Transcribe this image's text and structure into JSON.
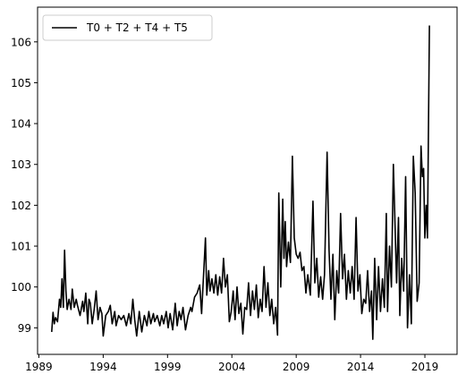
{
  "chart_data": {
    "type": "line",
    "title": "",
    "xlabel": "",
    "ylabel": "",
    "legend": {
      "position": "top-left",
      "entries": [
        "T0 + T2 +  T4 + T5"
      ]
    },
    "grid": false,
    "xlim": [
      1988.9,
      2021.5
    ],
    "ylim": [
      98.35,
      106.85
    ],
    "x_ticks": [
      1989,
      1994,
      1999,
      2004,
      2009,
      2014,
      2019
    ],
    "x_tick_labels": [
      "1989",
      "1994",
      "1999",
      "2004",
      "2009",
      "2014",
      "2019"
    ],
    "y_ticks": [
      99,
      100,
      101,
      102,
      103,
      104,
      105,
      106
    ],
    "y_tick_labels": [
      "99",
      "100",
      "101",
      "102",
      "103",
      "104",
      "105",
      "106"
    ],
    "series": [
      {
        "name": "T0 + T2 +  T4 + T5",
        "color": "#000000",
        "points": [
          [
            1990.0,
            98.9
          ],
          [
            1990.1,
            99.38
          ],
          [
            1990.2,
            99.1
          ],
          [
            1990.3,
            99.25
          ],
          [
            1990.45,
            99.15
          ],
          [
            1990.6,
            99.7
          ],
          [
            1990.7,
            99.5
          ],
          [
            1990.8,
            100.2
          ],
          [
            1990.9,
            99.5
          ],
          [
            1991.0,
            100.9
          ],
          [
            1991.1,
            99.9
          ],
          [
            1991.2,
            99.45
          ],
          [
            1991.35,
            99.7
          ],
          [
            1991.5,
            99.45
          ],
          [
            1991.6,
            99.95
          ],
          [
            1991.75,
            99.5
          ],
          [
            1991.9,
            99.7
          ],
          [
            1992.0,
            99.55
          ],
          [
            1992.2,
            99.3
          ],
          [
            1992.4,
            99.65
          ],
          [
            1992.5,
            99.4
          ],
          [
            1992.65,
            99.85
          ],
          [
            1992.8,
            99.1
          ],
          [
            1992.9,
            99.7
          ],
          [
            1993.0,
            99.6
          ],
          [
            1993.15,
            99.1
          ],
          [
            1993.3,
            99.45
          ],
          [
            1993.45,
            99.9
          ],
          [
            1993.6,
            99.2
          ],
          [
            1993.75,
            99.5
          ],
          [
            1993.9,
            99.35
          ],
          [
            1994.0,
            98.8
          ],
          [
            1994.2,
            99.3
          ],
          [
            1994.4,
            99.4
          ],
          [
            1994.55,
            99.55
          ],
          [
            1994.7,
            99.1
          ],
          [
            1994.9,
            99.4
          ],
          [
            1995.0,
            99.05
          ],
          [
            1995.2,
            99.3
          ],
          [
            1995.4,
            99.2
          ],
          [
            1995.6,
            99.3
          ],
          [
            1995.8,
            99.05
          ],
          [
            1996.0,
            99.35
          ],
          [
            1996.15,
            99.1
          ],
          [
            1996.3,
            99.7
          ],
          [
            1996.45,
            99.2
          ],
          [
            1996.6,
            98.8
          ],
          [
            1996.8,
            99.4
          ],
          [
            1997.0,
            98.9
          ],
          [
            1997.2,
            99.3
          ],
          [
            1997.4,
            99.05
          ],
          [
            1997.55,
            99.4
          ],
          [
            1997.7,
            99.1
          ],
          [
            1997.9,
            99.35
          ],
          [
            1998.0,
            99.15
          ],
          [
            1998.2,
            99.3
          ],
          [
            1998.4,
            99.05
          ],
          [
            1998.55,
            99.3
          ],
          [
            1998.7,
            99.1
          ],
          [
            1998.9,
            99.4
          ],
          [
            1999.05,
            99.0
          ],
          [
            1999.2,
            99.35
          ],
          [
            1999.4,
            98.95
          ],
          [
            1999.6,
            99.6
          ],
          [
            1999.75,
            99.05
          ],
          [
            1999.9,
            99.4
          ],
          [
            2000.05,
            99.2
          ],
          [
            2000.2,
            99.5
          ],
          [
            2000.4,
            98.95
          ],
          [
            2000.6,
            99.3
          ],
          [
            2000.8,
            99.5
          ],
          [
            2000.9,
            99.4
          ],
          [
            2001.1,
            99.75
          ],
          [
            2001.3,
            99.85
          ],
          [
            2001.5,
            100.05
          ],
          [
            2001.65,
            99.35
          ],
          [
            2001.8,
            100.3
          ],
          [
            2001.95,
            101.2
          ],
          [
            2002.05,
            99.8
          ],
          [
            2002.2,
            100.4
          ],
          [
            2002.3,
            99.9
          ],
          [
            2002.45,
            100.2
          ],
          [
            2002.6,
            99.85
          ],
          [
            2002.75,
            100.3
          ],
          [
            2002.9,
            99.8
          ],
          [
            2003.05,
            100.25
          ],
          [
            2003.2,
            99.85
          ],
          [
            2003.35,
            100.7
          ],
          [
            2003.5,
            100.0
          ],
          [
            2003.65,
            100.3
          ],
          [
            2003.8,
            99.15
          ],
          [
            2003.95,
            99.4
          ],
          [
            2004.1,
            99.9
          ],
          [
            2004.25,
            99.2
          ],
          [
            2004.4,
            100.0
          ],
          [
            2004.55,
            99.35
          ],
          [
            2004.7,
            99.6
          ],
          [
            2004.85,
            98.85
          ],
          [
            2005.0,
            99.5
          ],
          [
            2005.15,
            99.45
          ],
          [
            2005.3,
            100.1
          ],
          [
            2005.45,
            99.3
          ],
          [
            2005.6,
            99.9
          ],
          [
            2005.75,
            99.45
          ],
          [
            2005.9,
            100.05
          ],
          [
            2006.05,
            99.25
          ],
          [
            2006.2,
            99.7
          ],
          [
            2006.35,
            99.4
          ],
          [
            2006.5,
            100.5
          ],
          [
            2006.65,
            99.5
          ],
          [
            2006.8,
            100.1
          ],
          [
            2006.95,
            99.3
          ],
          [
            2007.1,
            99.7
          ],
          [
            2007.25,
            99.1
          ],
          [
            2007.4,
            99.5
          ],
          [
            2007.55,
            98.82
          ],
          [
            2007.65,
            102.3
          ],
          [
            2007.8,
            100.0
          ],
          [
            2007.95,
            102.15
          ],
          [
            2008.05,
            100.7
          ],
          [
            2008.15,
            101.6
          ],
          [
            2008.25,
            100.5
          ],
          [
            2008.4,
            101.1
          ],
          [
            2008.55,
            100.6
          ],
          [
            2008.7,
            103.2
          ],
          [
            2008.85,
            101.2
          ],
          [
            2009.0,
            100.8
          ],
          [
            2009.15,
            100.7
          ],
          [
            2009.3,
            100.85
          ],
          [
            2009.45,
            100.4
          ],
          [
            2009.6,
            100.5
          ],
          [
            2009.75,
            99.85
          ],
          [
            2009.9,
            100.3
          ],
          [
            2010.1,
            99.8
          ],
          [
            2010.3,
            102.1
          ],
          [
            2010.45,
            100.1
          ],
          [
            2010.6,
            100.7
          ],
          [
            2010.75,
            99.75
          ],
          [
            2010.9,
            100.25
          ],
          [
            2011.05,
            99.7
          ],
          [
            2011.2,
            100.3
          ],
          [
            2011.4,
            103.3
          ],
          [
            2011.55,
            100.9
          ],
          [
            2011.7,
            99.7
          ],
          [
            2011.85,
            100.8
          ],
          [
            2012.0,
            99.2
          ],
          [
            2012.15,
            100.4
          ],
          [
            2012.3,
            99.85
          ],
          [
            2012.45,
            101.8
          ],
          [
            2012.6,
            100.2
          ],
          [
            2012.75,
            100.8
          ],
          [
            2012.9,
            99.7
          ],
          [
            2013.05,
            100.4
          ],
          [
            2013.2,
            99.85
          ],
          [
            2013.35,
            100.5
          ],
          [
            2013.5,
            99.7
          ],
          [
            2013.65,
            101.7
          ],
          [
            2013.8,
            99.9
          ],
          [
            2013.95,
            100.3
          ],
          [
            2014.1,
            99.35
          ],
          [
            2014.25,
            99.7
          ],
          [
            2014.4,
            99.6
          ],
          [
            2014.55,
            100.4
          ],
          [
            2014.7,
            99.4
          ],
          [
            2014.85,
            99.9
          ],
          [
            2014.95,
            98.72
          ],
          [
            2015.1,
            100.7
          ],
          [
            2015.25,
            99.2
          ],
          [
            2015.4,
            100.5
          ],
          [
            2015.55,
            99.4
          ],
          [
            2015.7,
            100.2
          ],
          [
            2015.85,
            99.5
          ],
          [
            2016.0,
            101.8
          ],
          [
            2016.1,
            99.4
          ],
          [
            2016.25,
            101.0
          ],
          [
            2016.4,
            100.0
          ],
          [
            2016.55,
            103.0
          ],
          [
            2016.65,
            101.9
          ],
          [
            2016.8,
            100.1
          ],
          [
            2016.95,
            101.7
          ],
          [
            2017.05,
            99.3
          ],
          [
            2017.2,
            100.7
          ],
          [
            2017.35,
            99.9
          ],
          [
            2017.5,
            102.7
          ],
          [
            2017.65,
            99.0
          ],
          [
            2017.8,
            100.3
          ],
          [
            2017.95,
            99.1
          ],
          [
            2018.1,
            103.2
          ],
          [
            2018.25,
            102.3
          ],
          [
            2018.4,
            99.65
          ],
          [
            2018.55,
            100.1
          ],
          [
            2018.7,
            103.45
          ],
          [
            2018.8,
            102.7
          ],
          [
            2018.9,
            102.9
          ],
          [
            2019.0,
            101.2
          ],
          [
            2019.1,
            102.0
          ],
          [
            2019.2,
            101.2
          ],
          [
            2019.35,
            106.4
          ]
        ]
      }
    ]
  }
}
